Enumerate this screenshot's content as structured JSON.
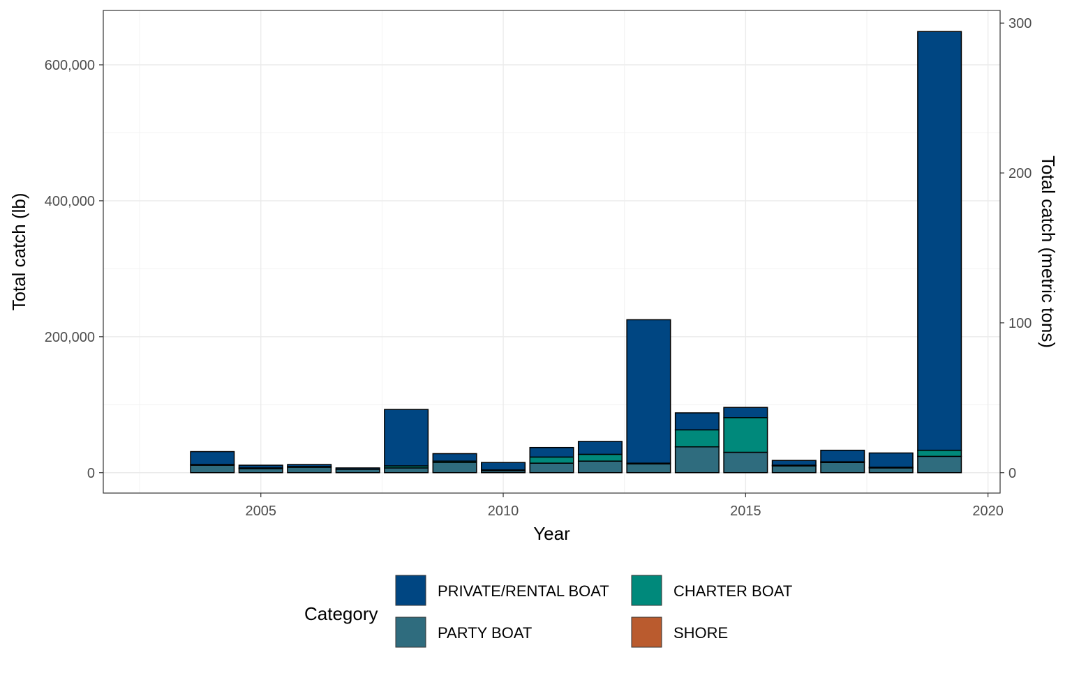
{
  "chart_data": {
    "type": "bar",
    "stacked": true,
    "x": [
      2004,
      2005,
      2006,
      2007,
      2008,
      2009,
      2010,
      2011,
      2012,
      2013,
      2014,
      2015,
      2016,
      2017,
      2018,
      2019
    ],
    "series": [
      {
        "name": "SHORE",
        "color": "#BA5B2E",
        "values": [
          0,
          0,
          0,
          0,
          0,
          0,
          0,
          0,
          0,
          0,
          0,
          0,
          0,
          0,
          0,
          0
        ]
      },
      {
        "name": "PARTY BOAT",
        "color": "#2F6C7E",
        "values": [
          11000,
          6000,
          8000,
          5000,
          7000,
          15000,
          3000,
          14000,
          17000,
          13000,
          38000,
          30000,
          10000,
          15000,
          7000,
          24000
        ]
      },
      {
        "name": "CHARTER BOAT",
        "color": "#00897B",
        "values": [
          1000,
          1000,
          1000,
          0,
          3000,
          2000,
          1000,
          9000,
          10000,
          1000,
          25000,
          51000,
          1000,
          1000,
          1000,
          9000
        ]
      },
      {
        "name": "PRIVATE/RENTAL BOAT",
        "color": "#004682",
        "values": [
          19000,
          4000,
          3000,
          2000,
          83000,
          11000,
          11000,
          14000,
          19000,
          211000,
          25000,
          15000,
          7000,
          17000,
          21000,
          616000
        ]
      }
    ],
    "xlabel": "Year",
    "ylabel": "Total catch (lb)",
    "y2label": "Total catch (metric tons)",
    "xticks": [
      2005,
      2010,
      2015,
      2020
    ],
    "xtick_labels": [
      "2005",
      "2010",
      "2015",
      "2020"
    ],
    "yticks": [
      0,
      200000,
      400000,
      600000
    ],
    "ytick_labels": [
      "0",
      "200,000",
      "400,000",
      "600,000"
    ],
    "y2ticks": [
      0,
      100,
      200,
      300
    ],
    "y2tick_labels": [
      "0",
      "100",
      "200",
      "300"
    ],
    "xlim": [
      2001.75,
      2020.25
    ],
    "ylim": [
      -30000,
      680000
    ],
    "grid": true,
    "legend": {
      "title": "Category",
      "position": "bottom",
      "items": [
        "PRIVATE/RENTAL BOAT",
        "CHARTER BOAT",
        "PARTY BOAT",
        "SHORE"
      ]
    }
  }
}
